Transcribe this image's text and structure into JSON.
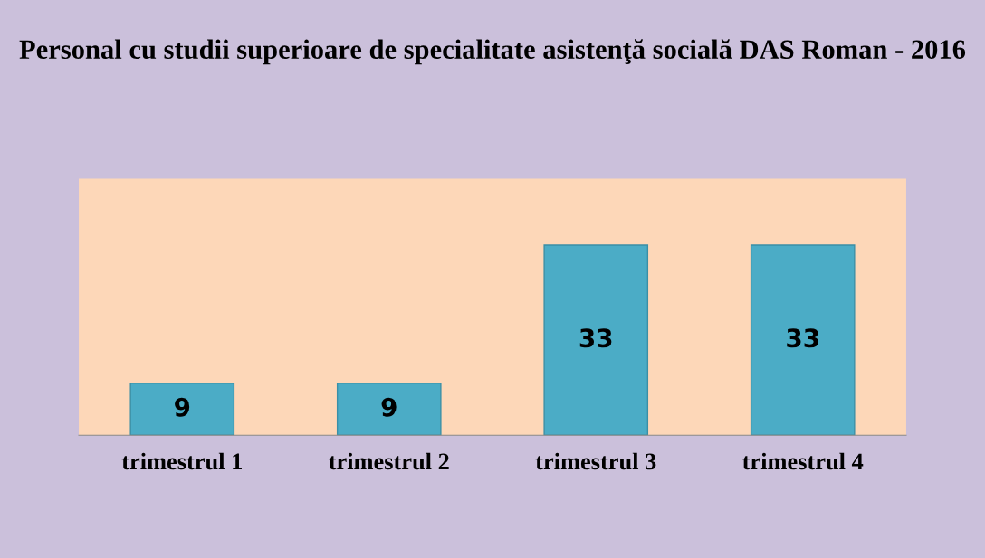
{
  "chart_data": {
    "type": "bar",
    "title": "Personal cu studii superioare de specialitate asistenţă socială DAS Roman - 2016",
    "categories": [
      "trimestrul 1",
      "trimestrul 2",
      "trimestrul 3",
      "trimestrul 4"
    ],
    "values": [
      9,
      9,
      33,
      33
    ],
    "color": "#4bacc6",
    "data_labels": true
  }
}
